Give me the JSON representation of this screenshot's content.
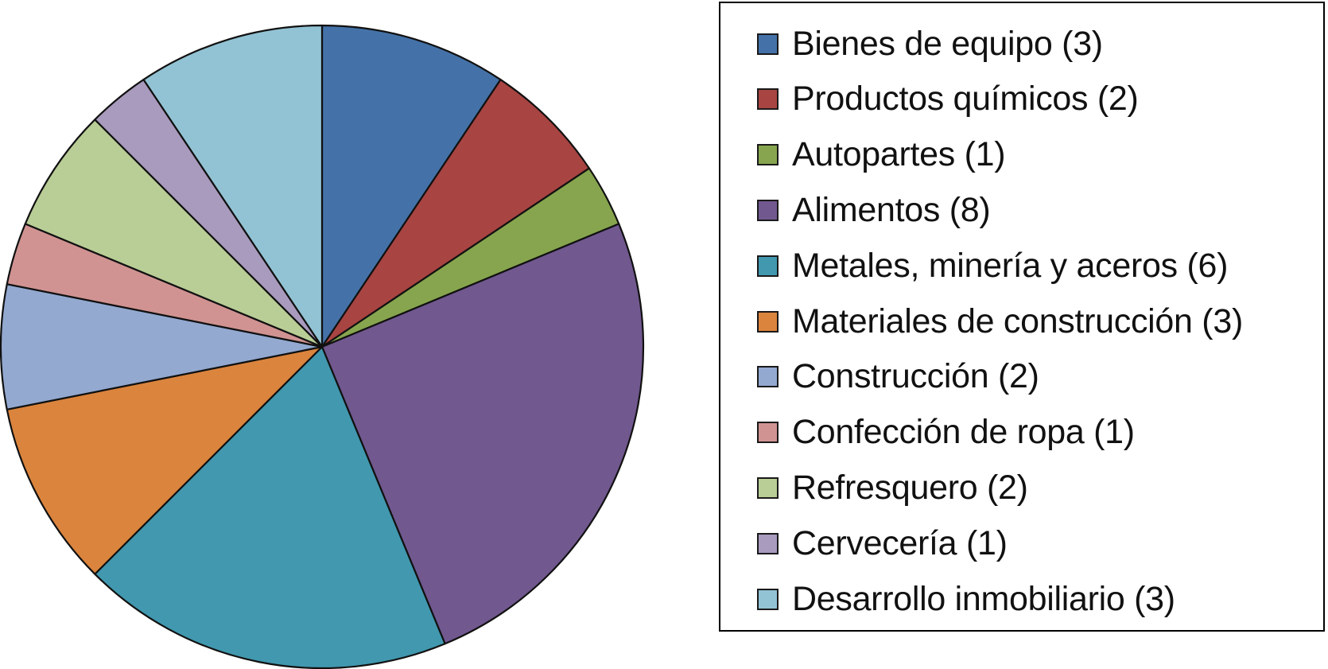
{
  "chart_data": {
    "type": "pie",
    "title": "",
    "start_angle_deg": 0,
    "direction": "clockwise",
    "series": [
      {
        "label": "Bienes de equipo (3)",
        "category": "Bienes de equipo",
        "value": 3,
        "color": "#4472a8"
      },
      {
        "label": "Productos químicos (2)",
        "category": "Productos químicos",
        "value": 2,
        "color": "#a84442"
      },
      {
        "label": "Autopartes (1)",
        "category": "Autopartes",
        "value": 1,
        "color": "#87a54e"
      },
      {
        "label": "Alimentos (8)",
        "category": "Alimentos",
        "value": 8,
        "color": "#71588f"
      },
      {
        "label": "Metales, minería y aceros (6)",
        "category": "Metales, minería y aceros",
        "value": 6,
        "color": "#4198af"
      },
      {
        "label": "Materiales de construcción (3)",
        "category": "Materiales de construcción",
        "value": 3,
        "color": "#db843d"
      },
      {
        "label": "Construcción (2)",
        "category": "Construcción",
        "value": 2,
        "color": "#93a9d0"
      },
      {
        "label": "Confección de ropa (1)",
        "category": "Confección de ropa",
        "value": 1,
        "color": "#d09392"
      },
      {
        "label": "Refresquero (2)",
        "category": "Refresquero",
        "value": 2,
        "color": "#b9cd96"
      },
      {
        "label": "Cervecería (1)",
        "category": "Cervecería",
        "value": 1,
        "color": "#a99bbd"
      },
      {
        "label": "Desarrollo inmobiliario (3)",
        "category": "Desarrollo inmobiliario",
        "value": 3,
        "color": "#92c3d4"
      }
    ],
    "legend": {
      "placement": "right",
      "border": true
    }
  }
}
